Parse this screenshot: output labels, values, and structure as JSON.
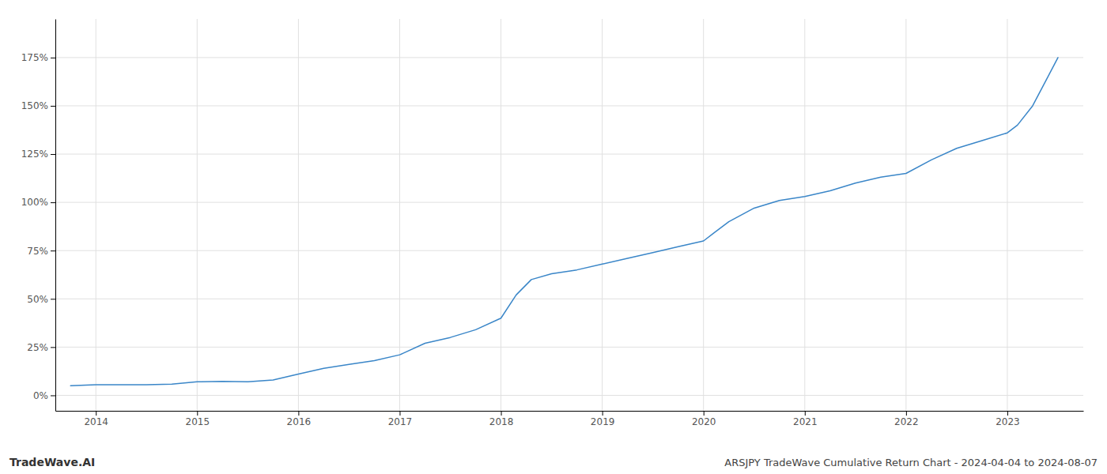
{
  "chart_data": {
    "type": "line",
    "title": "ARSJPY TradeWave Cumulative Return Chart - 2024-04-04 to 2024-08-07",
    "annotations": [
      "TradeWave.AI"
    ],
    "color": "#3a86c8",
    "grid": true,
    "x": [
      2013.75,
      2014.0,
      2014.25,
      2014.5,
      2014.75,
      2015.0,
      2015.25,
      2015.5,
      2015.75,
      2016.0,
      2016.25,
      2016.5,
      2016.75,
      2017.0,
      2017.25,
      2017.5,
      2017.75,
      2018.0,
      2018.15,
      2018.3,
      2018.5,
      2018.75,
      2019.0,
      2019.25,
      2019.5,
      2019.75,
      2020.0,
      2020.1,
      2020.25,
      2020.5,
      2020.75,
      2021.0,
      2021.25,
      2021.5,
      2021.75,
      2022.0,
      2022.25,
      2022.5,
      2022.75,
      2023.0,
      2023.1,
      2023.25,
      2023.4,
      2023.5
    ],
    "values": [
      5,
      5.5,
      5.5,
      5.5,
      5.8,
      7,
      7.2,
      7.0,
      8.0,
      11,
      14,
      16,
      18,
      21,
      27,
      30,
      34,
      40,
      52,
      60,
      63,
      65,
      68,
      71,
      74,
      77,
      80,
      84,
      90,
      97,
      101,
      103,
      106,
      110,
      113,
      115,
      122,
      128,
      132,
      136,
      140,
      150,
      165,
      175
    ],
    "xlim": [
      2013.6,
      2023.75
    ],
    "ylim": [
      -8,
      195
    ],
    "xticks": [
      2014,
      2015,
      2016,
      2017,
      2018,
      2019,
      2020,
      2021,
      2022,
      2023
    ],
    "yticks": [
      {
        "value": 0,
        "label": "0%"
      },
      {
        "value": 25,
        "label": "25%"
      },
      {
        "value": 50,
        "label": "50%"
      },
      {
        "value": 75,
        "label": "75%"
      },
      {
        "value": 100,
        "label": "100%"
      },
      {
        "value": 125,
        "label": "125%"
      },
      {
        "value": 150,
        "label": "150%"
      },
      {
        "value": 175,
        "label": "175%"
      }
    ]
  }
}
